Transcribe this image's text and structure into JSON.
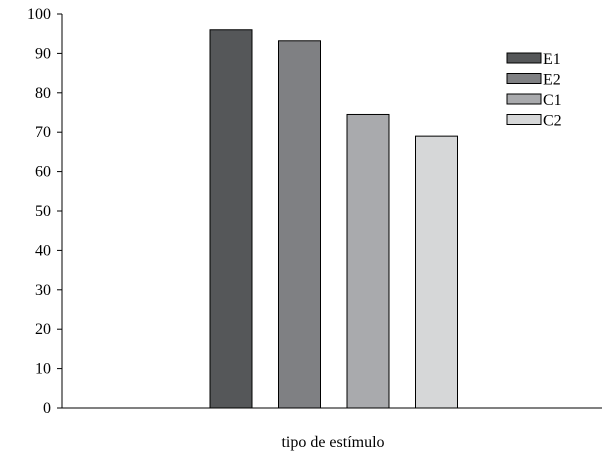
{
  "chart_data": {
    "type": "bar",
    "title": "",
    "xlabel": "tipo de estímulo",
    "ylabel": "",
    "categories": [
      "E1",
      "E2",
      "C1",
      "C2"
    ],
    "values": [
      96,
      93.2,
      74.5,
      69
    ],
    "ylim": [
      0,
      100
    ],
    "yticks": [
      "0",
      "10",
      "20",
      "30",
      "40",
      "50",
      "60",
      "70",
      "80",
      "90",
      "100"
    ],
    "grid": false,
    "legend_position": "top-right",
    "colors": [
      "#555759",
      "#7f8083",
      "#a9aaad",
      "#d6d7d8"
    ]
  }
}
